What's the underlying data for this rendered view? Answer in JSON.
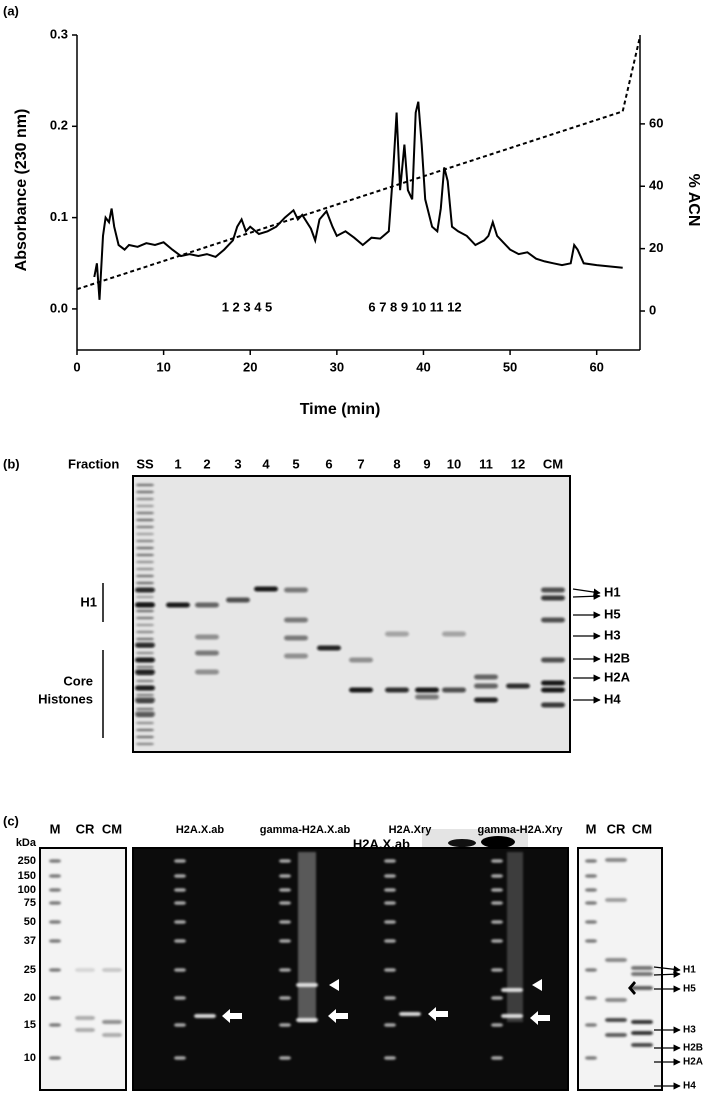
{
  "chart_data": {
    "type": "line",
    "panel_label": "(a)",
    "xlabel": "Time (min)",
    "ylabel": "Absorbance (230 nm)",
    "y2label": "% ACN",
    "xlim": [
      0,
      65
    ],
    "xticks": [
      0,
      10,
      20,
      30,
      40,
      50,
      60
    ],
    "ylim": [
      -0.045,
      0.3
    ],
    "yticks": [
      {
        "value": 0,
        "label": "0.0"
      },
      0.1,
      0.2,
      0.3
    ],
    "y2lim": [
      -12.5,
      88.5
    ],
    "y2ticks": [
      0,
      20,
      40,
      60
    ],
    "annotations": [
      "1 2 3 4 5",
      "6 7 8 9 10 11 12"
    ],
    "series": [
      {
        "color": "#000000",
        "axis": "y",
        "x": [
          2.0,
          2.3,
          2.6,
          3,
          3.3,
          3.7,
          4,
          4.3,
          4.8,
          5.5,
          6,
          7,
          8,
          9,
          10,
          11,
          12,
          13,
          14,
          15,
          16,
          17,
          18,
          18.5,
          19,
          19.5,
          20,
          21,
          22,
          23,
          24,
          25,
          25.5,
          26,
          27,
          27.5,
          28,
          28.8,
          29.5,
          30,
          31,
          32,
          33,
          34,
          35,
          36,
          36.5,
          36.9,
          37.3,
          37.8,
          38.2,
          38.7,
          39.1,
          39.4,
          39.8,
          40.2,
          41,
          41.6,
          42,
          42.4,
          42.8,
          43.3,
          44,
          45,
          46,
          47,
          47.5,
          48,
          48.5,
          49,
          50,
          51,
          52,
          53,
          54,
          55,
          56,
          57,
          57.4,
          57.8,
          58.5,
          60,
          62,
          63
        ],
        "values": [
          0.035,
          0.05,
          0.01,
          0.08,
          0.1,
          0.095,
          0.11,
          0.09,
          0.07,
          0.065,
          0.07,
          0.068,
          0.072,
          0.07,
          0.073,
          0.065,
          0.058,
          0.06,
          0.058,
          0.06,
          0.057,
          0.065,
          0.075,
          0.09,
          0.098,
          0.085,
          0.09,
          0.082,
          0.085,
          0.09,
          0.1,
          0.108,
          0.098,
          0.103,
          0.088,
          0.075,
          0.098,
          0.107,
          0.09,
          0.08,
          0.085,
          0.078,
          0.07,
          0.078,
          0.077,
          0.085,
          0.15,
          0.215,
          0.13,
          0.18,
          0.13,
          0.12,
          0.215,
          0.227,
          0.18,
          0.12,
          0.09,
          0.085,
          0.11,
          0.155,
          0.14,
          0.09,
          0.085,
          0.08,
          0.07,
          0.075,
          0.08,
          0.095,
          0.08,
          0.075,
          0.065,
          0.06,
          0.062,
          0.055,
          0.052,
          0.05,
          0.048,
          0.05,
          0.07,
          0.065,
          0.05,
          0.048,
          0.046,
          0.045
        ]
      },
      {
        "color": "#000000",
        "axis": "y2",
        "dashed": true,
        "x": [
          0,
          63,
          65
        ],
        "values": [
          7,
          64,
          88
        ]
      }
    ]
  },
  "panel_b": {
    "label": "(b)",
    "header": "Fraction",
    "lanes": [
      "SS",
      "1",
      "2",
      "3",
      "4",
      "5",
      "6",
      "7",
      "8",
      "9",
      "10",
      "11",
      "12",
      "CM"
    ],
    "left_labels": [
      "H1",
      "Core",
      "Histones"
    ],
    "right_labels": [
      "H1",
      "H5",
      "H3",
      "H2B",
      "H2A",
      "H4"
    ]
  },
  "panel_c": {
    "label": "(c)",
    "blot_label": "H2A.X.ab",
    "kda": "kDa",
    "markers": [
      "250",
      "150",
      "100",
      "75",
      "50",
      "37",
      "25",
      "20",
      "15",
      "10"
    ],
    "left_lanes": [
      "M",
      "CR",
      "CM"
    ],
    "middle_headers": [
      "H2A.X.ab",
      "gamma-H2A.X.ab",
      "H2A.Xry",
      "gamma-H2A.Xry"
    ],
    "right_lanes": [
      "M",
      "CR",
      "CM"
    ],
    "right_labels": [
      "H1",
      "H5",
      "H3",
      "H2B",
      "H2A",
      "H4"
    ]
  }
}
